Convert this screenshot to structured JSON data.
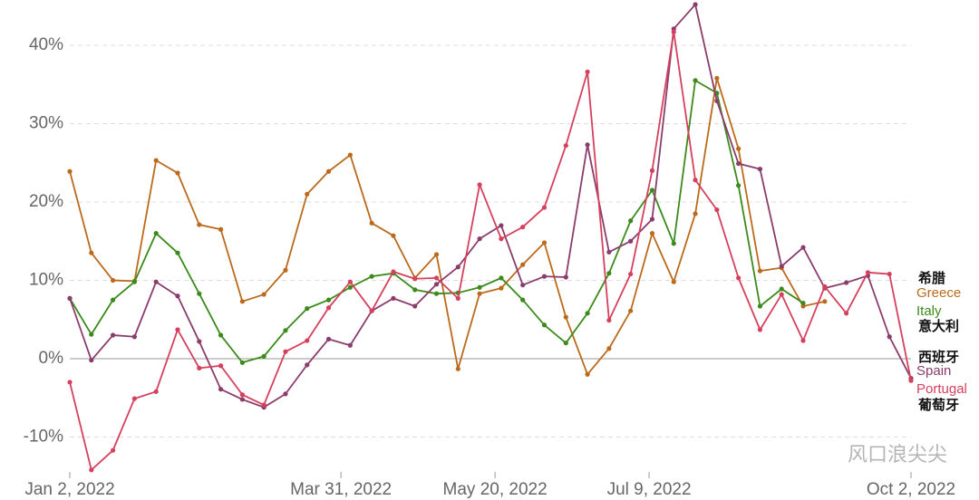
{
  "chart_data": {
    "type": "line",
    "x": [
      "2022-01-02",
      "2022-01-09",
      "2022-01-16",
      "2022-01-23",
      "2022-01-30",
      "2022-02-06",
      "2022-02-13",
      "2022-02-20",
      "2022-02-27",
      "2022-03-06",
      "2022-03-13",
      "2022-03-20",
      "2022-03-27",
      "2022-04-03",
      "2022-04-10",
      "2022-04-17",
      "2022-04-24",
      "2022-05-01",
      "2022-05-08",
      "2022-05-15",
      "2022-05-22",
      "2022-05-29",
      "2022-06-05",
      "2022-06-12",
      "2022-06-19",
      "2022-06-26",
      "2022-07-03",
      "2022-07-10",
      "2022-07-17",
      "2022-07-24",
      "2022-07-31",
      "2022-08-07",
      "2022-08-14",
      "2022-08-21",
      "2022-08-28",
      "2022-09-04",
      "2022-09-11",
      "2022-09-18",
      "2022-09-25",
      "2022-10-02"
    ],
    "series": [
      {
        "name": "Greece",
        "label_cn": "希腊",
        "color": "#bb6a1c",
        "values": [
          23.9,
          13.5,
          10.0,
          9.9,
          25.3,
          23.7,
          17.1,
          16.5,
          7.3,
          8.2,
          11.3,
          21.0,
          23.9,
          26.0,
          17.3,
          15.7,
          10.3,
          13.3,
          -1.3,
          8.3,
          9.0,
          12.0,
          14.8,
          5.3,
          -2.0,
          1.3,
          6.1,
          16.0,
          9.8,
          18.5,
          35.8,
          26.8,
          11.2,
          11.6,
          6.7,
          7.3,
          null,
          null,
          null,
          null
        ]
      },
      {
        "name": "Italy",
        "label_cn": "意大利",
        "color": "#3b8a1b",
        "values": [
          7.7,
          3.1,
          7.5,
          9.8,
          16.0,
          13.5,
          8.3,
          3.0,
          -0.5,
          0.3,
          3.6,
          6.4,
          7.5,
          9.1,
          10.5,
          10.9,
          8.8,
          8.3,
          8.4,
          9.1,
          10.3,
          7.5,
          4.3,
          2.0,
          5.8,
          10.9,
          17.6,
          21.5,
          14.7,
          35.5,
          33.9,
          22.1,
          6.7,
          8.9,
          7.1,
          null,
          null,
          null,
          null,
          null
        ]
      },
      {
        "name": "Spain",
        "label_cn": "西班牙",
        "color": "#8a3c6c",
        "values": [
          7.7,
          -0.2,
          3.0,
          2.8,
          9.8,
          8.0,
          2.2,
          -3.9,
          -5.2,
          -6.2,
          -4.5,
          -0.8,
          2.5,
          1.7,
          6.1,
          7.7,
          6.7,
          9.5,
          11.7,
          15.3,
          17.0,
          9.4,
          10.5,
          10.4,
          27.3,
          13.6,
          15.0,
          17.8,
          42.1,
          45.2,
          32.9,
          24.9,
          24.2,
          11.8,
          14.2,
          9.0,
          9.7,
          10.6,
          2.8,
          -2.5
        ]
      },
      {
        "name": "Portugal",
        "label_cn": "葡萄牙",
        "color": "#d5405d",
        "values": [
          -3.0,
          -14.2,
          -11.7,
          -5.1,
          -4.2,
          3.7,
          -1.2,
          -0.9,
          -4.6,
          -5.9,
          0.9,
          2.3,
          6.5,
          9.8,
          6.1,
          11.1,
          10.2,
          10.3,
          7.7,
          22.2,
          15.3,
          16.8,
          19.3,
          27.2,
          36.6,
          4.9,
          10.8,
          24.0,
          41.7,
          22.8,
          19.0,
          10.3,
          3.7,
          8.2,
          2.3,
          9.2,
          5.8,
          11.0,
          10.8,
          -2.8
        ]
      }
    ],
    "xlim": [
      "2022-01-02",
      "2022-10-02"
    ],
    "xticks": [
      {
        "value": "2022-01-02",
        "label": "Jan 2, 2022"
      },
      {
        "value": "2022-03-31",
        "label": "Mar 31, 2022"
      },
      {
        "value": "2022-05-20",
        "label": "May 20, 2022"
      },
      {
        "value": "2022-07-09",
        "label": "Jul 9, 2022"
      },
      {
        "value": "2022-10-02",
        "label": "Oct 2, 2022"
      }
    ],
    "ylim": [
      -14.5,
      45.5
    ],
    "yticks": [
      {
        "value": -10,
        "label": "-10%"
      },
      {
        "value": 0,
        "label": "0%"
      },
      {
        "value": 10,
        "label": "10%"
      },
      {
        "value": 20,
        "label": "20%"
      },
      {
        "value": 30,
        "label": "30%"
      },
      {
        "value": 40,
        "label": "40%"
      }
    ],
    "grid": true,
    "watermark": "风口浪尖尖"
  }
}
